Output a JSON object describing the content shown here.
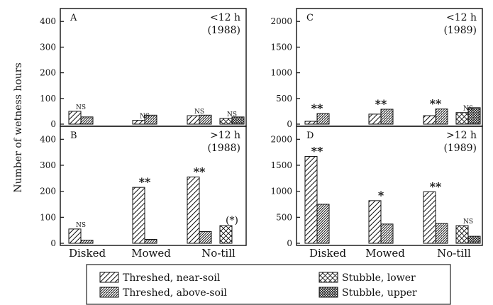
{
  "y_axis_label": "Number of wetness hours",
  "categories": [
    "Disked",
    "Mowed",
    "No-till"
  ],
  "legend": [
    {
      "key": "tn",
      "label": "Threshed, near-soil",
      "pattern": "diag-sparse"
    },
    {
      "key": "ta",
      "label": "Threshed, above-soil",
      "pattern": "diag-dense"
    },
    {
      "key": "sl",
      "label": "Stubble, lower",
      "pattern": "crosshatch-sparse"
    },
    {
      "key": "su",
      "label": "Stubble, upper",
      "pattern": "crosshatch-dense"
    }
  ],
  "chart_data": [
    {
      "id": "A",
      "type": "bar",
      "letter": "A",
      "condition": "<12 h",
      "year": "(1988)",
      "ylim": [
        0,
        420
      ],
      "yticks": [
        0,
        100,
        200,
        300,
        400
      ],
      "groups": [
        {
          "category": "Disked",
          "bars": [
            {
              "series": "tn",
              "value": 50
            },
            {
              "series": "ta",
              "value": 28
            }
          ],
          "significance": "NS"
        },
        {
          "category": "Mowed",
          "bars": [
            {
              "series": "tn",
              "value": 15
            },
            {
              "series": "ta",
              "value": 35
            }
          ],
          "significance": "NS"
        },
        {
          "category": "No-till",
          "bars": [
            {
              "series": "tn",
              "value": 33
            },
            {
              "series": "ta",
              "value": 35
            }
          ],
          "significance": "NS"
        },
        {
          "category": "No-till",
          "bars": [
            {
              "series": "sl",
              "value": 22
            },
            {
              "series": "su",
              "value": 28
            }
          ],
          "significance": "NS"
        }
      ]
    },
    {
      "id": "B",
      "type": "bar",
      "letter": "B",
      "condition": ">12 h",
      "year": "(1988)",
      "ylim": [
        0,
        420
      ],
      "yticks": [
        0,
        100,
        200,
        300,
        400
      ],
      "groups": [
        {
          "category": "Disked",
          "bars": [
            {
              "series": "tn",
              "value": 55
            },
            {
              "series": "ta",
              "value": 12
            }
          ],
          "significance": "NS"
        },
        {
          "category": "Mowed",
          "bars": [
            {
              "series": "tn",
              "value": 215
            },
            {
              "series": "ta",
              "value": 15
            }
          ],
          "significance": "**"
        },
        {
          "category": "No-till",
          "bars": [
            {
              "series": "tn",
              "value": 255
            },
            {
              "series": "ta",
              "value": 45
            }
          ],
          "significance": "**"
        },
        {
          "category": "No-till",
          "bars": [
            {
              "series": "sl",
              "value": 68
            },
            {
              "series": "su",
              "value": 0
            }
          ],
          "significance": "(*)"
        }
      ]
    },
    {
      "id": "C",
      "type": "bar",
      "letter": "C",
      "condition": "<12 h",
      "year": "(1989)",
      "ylim": [
        0,
        2100
      ],
      "yticks": [
        0,
        500,
        1000,
        1500,
        2000
      ],
      "groups": [
        {
          "category": "Disked",
          "bars": [
            {
              "series": "tn",
              "value": 55
            },
            {
              "series": "ta",
              "value": 205
            }
          ],
          "significance": "**"
        },
        {
          "category": "Mowed",
          "bars": [
            {
              "series": "tn",
              "value": 195
            },
            {
              "series": "ta",
              "value": 290
            }
          ],
          "significance": "**"
        },
        {
          "category": "No-till",
          "bars": [
            {
              "series": "tn",
              "value": 165
            },
            {
              "series": "ta",
              "value": 295
            }
          ],
          "significance": "**"
        },
        {
          "category": "No-till",
          "bars": [
            {
              "series": "sl",
              "value": 225
            },
            {
              "series": "su",
              "value": 320
            }
          ],
          "significance": "NS"
        }
      ]
    },
    {
      "id": "D",
      "type": "bar",
      "letter": "D",
      "condition": ">12 h",
      "year": "(1989)",
      "ylim": [
        0,
        2100
      ],
      "yticks": [
        0,
        500,
        1000,
        1500,
        2000
      ],
      "groups": [
        {
          "category": "Disked",
          "bars": [
            {
              "series": "tn",
              "value": 1670
            },
            {
              "series": "ta",
              "value": 750
            }
          ],
          "significance": "**"
        },
        {
          "category": "Mowed",
          "bars": [
            {
              "series": "tn",
              "value": 820
            },
            {
              "series": "ta",
              "value": 370
            }
          ],
          "significance": "*"
        },
        {
          "category": "No-till",
          "bars": [
            {
              "series": "tn",
              "value": 990
            },
            {
              "series": "ta",
              "value": 380
            }
          ],
          "significance": "**"
        },
        {
          "category": "No-till",
          "bars": [
            {
              "series": "sl",
              "value": 340
            },
            {
              "series": "su",
              "value": 135
            }
          ],
          "significance": "NS"
        }
      ]
    }
  ]
}
